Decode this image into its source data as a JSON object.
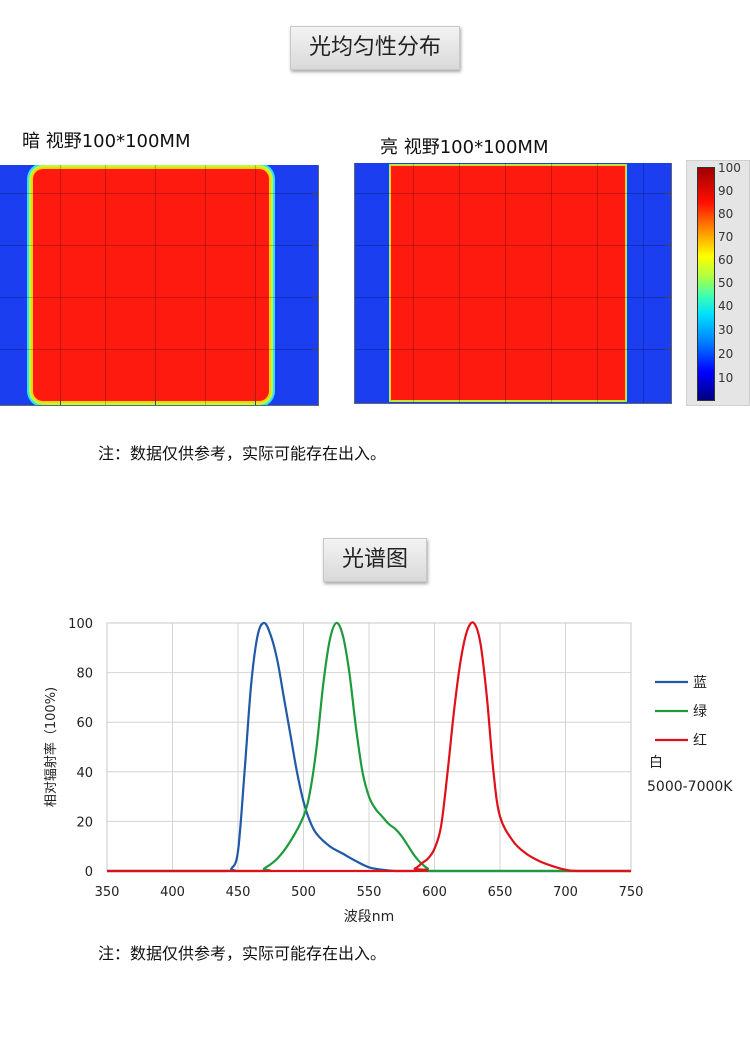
{
  "uniformity": {
    "title": "光均匀性分布",
    "dark_label": "暗 视野100*100MM",
    "bright_label": "亮 视野100*100MM",
    "scale_ticks": [
      "100",
      "90",
      "80",
      "70",
      "60",
      "50",
      "40",
      "30",
      "20",
      "10"
    ],
    "colors": {
      "blue": "#1a3ef0",
      "red": "#ff1a10"
    },
    "note": "注：数据仅供参考，实际可能存在出入。"
  },
  "spectrum": {
    "title": "光谱图",
    "note": "注：数据仅供参考，实际可能存在出入。",
    "white_label": "白",
    "white_cct": "5000-7000K"
  },
  "chart_data": {
    "type": "line",
    "xlabel": "波段nm",
    "ylabel": "相对辐射率（100%)",
    "xlim": [
      350,
      750
    ],
    "ylim": [
      0,
      100
    ],
    "xticks": [
      350,
      400,
      450,
      500,
      550,
      600,
      650,
      700,
      750
    ],
    "yticks": [
      0,
      20,
      40,
      60,
      80,
      100
    ],
    "grid": true,
    "legend_position": "right",
    "series": [
      {
        "name": "蓝",
        "color": "#1f5aa6",
        "x": [
          350,
          440,
          445,
          450,
          455,
          460,
          465,
          470,
          475,
          480,
          485,
          490,
          495,
          500,
          505,
          510,
          520,
          530,
          540,
          550,
          560,
          570,
          580,
          590,
          600,
          750
        ],
        "y": [
          0,
          0,
          1,
          8,
          40,
          75,
          95,
          100,
          95,
          85,
          70,
          55,
          40,
          28,
          20,
          15,
          10,
          7,
          4,
          1.5,
          0.5,
          0,
          0,
          0,
          0,
          0
        ]
      },
      {
        "name": "绿",
        "color": "#1e9a3c",
        "x": [
          350,
          465,
          470,
          480,
          490,
          500,
          505,
          510,
          515,
          520,
          525,
          530,
          535,
          540,
          545,
          550,
          555,
          560,
          565,
          570,
          575,
          580,
          585,
          590,
          595,
          600,
          750
        ],
        "y": [
          0,
          0,
          1,
          5,
          12,
          22,
          32,
          50,
          75,
          93,
          100,
          95,
          80,
          58,
          40,
          30,
          25,
          22,
          19,
          17,
          14,
          10,
          6,
          3,
          1,
          0,
          0
        ]
      },
      {
        "name": "红",
        "color": "#e0101a",
        "x": [
          350,
          575,
          585,
          590,
          595,
          600,
          605,
          610,
          615,
          620,
          625,
          630,
          635,
          640,
          645,
          650,
          660,
          670,
          680,
          690,
          700,
          710,
          750
        ],
        "y": [
          0,
          0,
          1,
          3,
          5,
          9,
          18,
          40,
          65,
          85,
          97,
          100,
          92,
          70,
          40,
          22,
          12,
          7,
          4,
          2,
          0.5,
          0,
          0
        ]
      }
    ]
  }
}
